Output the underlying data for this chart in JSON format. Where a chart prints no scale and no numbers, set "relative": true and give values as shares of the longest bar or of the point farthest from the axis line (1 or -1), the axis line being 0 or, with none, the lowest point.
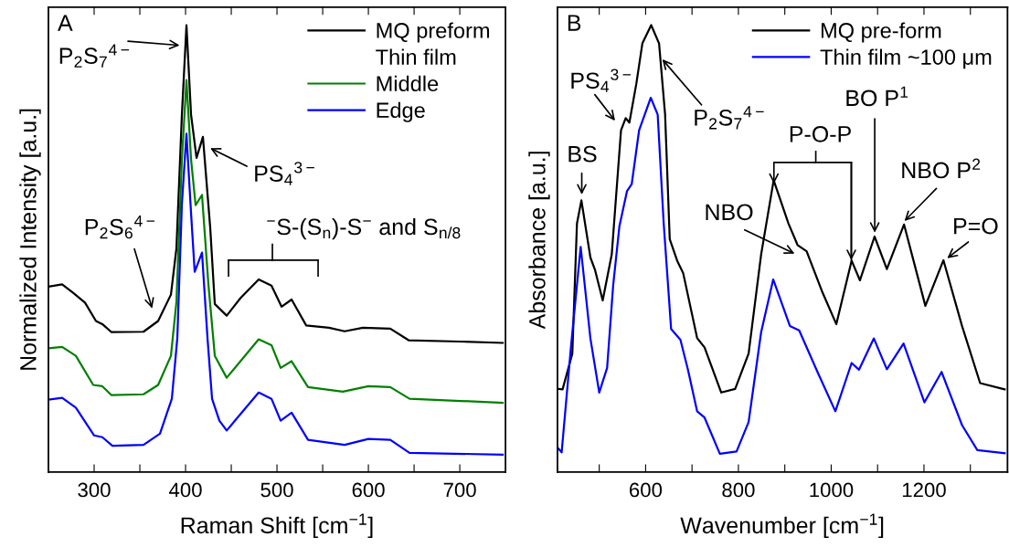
{
  "chart_data": [
    {
      "type": "line",
      "title": "A",
      "xlabel": "Raman Shift [cm$^{−1}$]",
      "ylabel": "Normalized Intensity [a.u.]",
      "relative": true,
      "legend": "top right",
      "xlim": [
        250,
        750
      ],
      "xticks": [
        300,
        {
          "value": 350,
          "label": null
        },
        400,
        {
          "value": 450,
          "label": null
        },
        500,
        {
          "value": 550,
          "label": null
        },
        600,
        {
          "value": 650,
          "label": null
        },
        700
      ],
      "annotations": [
        "Thin film",
        "P$_{2}$S$_{7}$$^{4−}$",
        "PS$_{4}$$^{3−}$",
        "P$_{2}$S$_{6}$$^{4−}$",
        "$^{−}$S-(S$_{n}$)-S$^{−}$ and S$_{n/8}$"
      ],
      "series": [
        {
          "name": "MQ preform",
          "color": "#000000",
          "x": [
            250,
            265,
            277,
            290,
            302,
            309,
            319,
            354,
            370,
            384,
            390,
            396,
            401,
            406,
            412,
            419,
            427,
            432,
            445,
            460,
            480,
            494,
            505,
            516,
            532,
            557,
            574,
            594,
            624,
            644,
            700,
            747
          ],
          "values": [
            0.415,
            0.42,
            0.401,
            0.379,
            0.338,
            0.331,
            0.313,
            0.314,
            0.338,
            0.397,
            0.5,
            0.8,
            1.0,
            0.8,
            0.703,
            0.75,
            0.546,
            0.376,
            0.35,
            0.389,
            0.431,
            0.417,
            0.37,
            0.386,
            0.328,
            0.323,
            0.315,
            0.323,
            0.321,
            0.295,
            0.292,
            0.289
          ]
        },
        {
          "name": "Middle",
          "color": "#008000",
          "x": [
            250,
            265,
            280,
            299,
            309,
            319,
            354,
            370,
            384,
            390,
            396,
            401,
            406,
            411,
            418,
            425,
            432,
            445,
            480,
            494,
            504,
            516,
            534,
            572,
            600,
            624,
            645,
            747
          ],
          "values": [
            0.277,
            0.28,
            0.26,
            0.195,
            0.192,
            0.172,
            0.174,
            0.195,
            0.26,
            0.38,
            0.7,
            0.877,
            0.7,
            0.597,
            0.62,
            0.42,
            0.26,
            0.211,
            0.297,
            0.284,
            0.233,
            0.248,
            0.19,
            0.18,
            0.192,
            0.19,
            0.164,
            0.155
          ]
        },
        {
          "name": "Edge",
          "color": "#0000ff",
          "x": [
            250,
            265,
            280,
            300,
            309,
            320,
            354,
            372,
            385,
            391,
            396,
            401,
            406,
            410,
            418,
            424,
            429,
            437,
            445,
            480,
            494,
            504,
            516,
            534,
            574,
            600,
            624,
            645,
            747
          ],
          "values": [
            0.162,
            0.166,
            0.144,
            0.082,
            0.078,
            0.059,
            0.061,
            0.086,
            0.164,
            0.3,
            0.6,
            0.757,
            0.58,
            0.448,
            0.491,
            0.3,
            0.164,
            0.115,
            0.093,
            0.178,
            0.164,
            0.115,
            0.133,
            0.072,
            0.061,
            0.074,
            0.072,
            0.043,
            0.039
          ]
        }
      ]
    },
    {
      "type": "line",
      "title": "B",
      "xlabel": "Wavenumber [cm$^{−1}$]",
      "ylabel": "Absorbance [a.u.]",
      "relative": true,
      "legend": "top right",
      "xlim": [
        410,
        1380
      ],
      "xticks": [
        {
          "value": 500,
          "label": null
        },
        600,
        {
          "value": 700,
          "label": null
        },
        800,
        {
          "value": 900,
          "label": null
        },
        1000,
        {
          "value": 1100,
          "label": null
        },
        1200,
        {
          "value": 1300,
          "label": null
        }
      ],
      "annotations": [
        "BS",
        "PS$_{4}$$^{3−}$",
        "P$_{2}$S$_{7}$$^{4−}$",
        "P-O-P",
        "NBO",
        "BO P$^{1}$",
        "NBO P$^{2}$",
        "P=O"
      ],
      "series": [
        {
          "name": "MQ pre-form",
          "color": "#000000",
          "x": [
            412,
            421,
            442,
            452,
            461.6,
            481,
            491,
            507.5,
            527,
            547,
            557,
            565,
            580,
            593,
            612,
            629,
            642,
            652,
            668,
            681,
            711,
            727,
            763,
            793,
            822,
            849,
            876,
            908,
            927.5,
            947,
            980,
            1011,
            1044,
            1062,
            1093.5,
            1120,
            1157,
            1203,
            1242,
            1282,
            1321,
            1374
          ],
          "values": [
            0.186,
            0.185,
            0.265,
            0.556,
            0.608,
            0.48,
            0.452,
            0.384,
            0.487,
            0.765,
            0.792,
            0.782,
            0.869,
            0.959,
            1.0,
            0.959,
            0.8,
            0.521,
            0.473,
            0.445,
            0.3,
            0.279,
            0.178,
            0.186,
            0.265,
            0.487,
            0.653,
            0.556,
            0.508,
            0.494,
            0.405,
            0.331,
            0.473,
            0.429,
            0.527,
            0.454,
            0.554,
            0.372,
            0.474,
            0.327,
            0.199,
            0.185
          ]
        },
        {
          "name": "Thin film ~100 μm",
          "color": "#0000ff",
          "x": [
            410,
            419,
            439,
            460,
            481,
            500,
            517,
            530,
            543.5,
            560,
            570,
            586,
            611,
            626,
            639,
            655,
            675,
            691,
            711,
            727,
            760,
            796,
            822,
            849,
            875,
            911,
            931,
            970,
            1009,
            1044,
            1060,
            1092,
            1120,
            1156,
            1201,
            1238,
            1282,
            1315,
            1374
          ],
          "values": [
            0.055,
            0.044,
            0.279,
            0.504,
            0.299,
            0.178,
            0.233,
            0.417,
            0.55,
            0.629,
            0.644,
            0.765,
            0.8375,
            0.8,
            0.556,
            0.32,
            0.296,
            0.23,
            0.136,
            0.122,
            0.041,
            0.046,
            0.112,
            0.313,
            0.431,
            0.327,
            0.317,
            0.225,
            0.136,
            0.244,
            0.229,
            0.299,
            0.23,
            0.2875,
            0.156,
            0.224,
            0.105,
            0.049,
            0.042
          ]
        }
      ]
    }
  ]
}
